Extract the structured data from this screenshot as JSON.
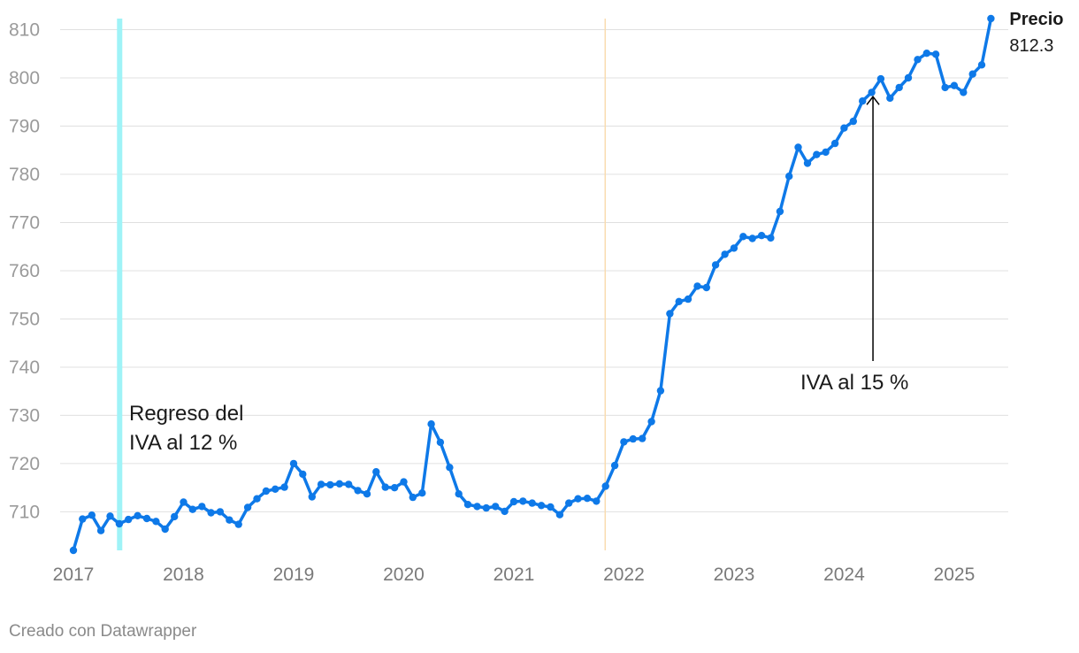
{
  "chart_data": {
    "type": "line",
    "title": "",
    "xlabel": "",
    "ylabel": "",
    "ylim": [
      702,
      812.3
    ],
    "yticks": [
      710,
      720,
      730,
      740,
      750,
      760,
      770,
      780,
      790,
      800,
      810
    ],
    "xticks": [
      2017,
      2018,
      2019,
      2020,
      2021,
      2022,
      2023,
      2024,
      2025
    ],
    "xlim": [
      2017,
      2025.33
    ],
    "grid": true,
    "colors": {
      "line": "#0e79e8",
      "band_12": "#9ff3f7",
      "line_2021": "#f9dcb0",
      "arrow": "#000000"
    },
    "series": [
      {
        "name": "Precio",
        "last_value_label": "812.3",
        "x": [
          2017.0,
          2017.083,
          2017.167,
          2017.25,
          2017.333,
          2017.417,
          2017.5,
          2017.583,
          2017.667,
          2017.75,
          2017.833,
          2017.917,
          2018.0,
          2018.083,
          2018.167,
          2018.25,
          2018.333,
          2018.417,
          2018.5,
          2018.583,
          2018.667,
          2018.75,
          2018.833,
          2018.917,
          2019.0,
          2019.083,
          2019.167,
          2019.25,
          2019.333,
          2019.417,
          2019.5,
          2019.583,
          2019.667,
          2019.75,
          2019.833,
          2019.917,
          2020.0,
          2020.083,
          2020.167,
          2020.25,
          2020.333,
          2020.417,
          2020.5,
          2020.583,
          2020.667,
          2020.75,
          2020.833,
          2020.917,
          2021.0,
          2021.083,
          2021.167,
          2021.25,
          2021.333,
          2021.417,
          2021.5,
          2021.583,
          2021.667,
          2021.75,
          2021.833,
          2021.917,
          2022.0,
          2022.083,
          2022.167,
          2022.25,
          2022.333,
          2022.417,
          2022.5,
          2022.583,
          2022.667,
          2022.75,
          2022.833,
          2022.917,
          2023.0,
          2023.083,
          2023.167,
          2023.25,
          2023.333,
          2023.417,
          2023.5,
          2023.583,
          2023.667,
          2023.75,
          2023.833,
          2023.917,
          2024.0,
          2024.083,
          2024.167,
          2024.25,
          2024.333,
          2024.417,
          2024.5,
          2024.583,
          2024.667,
          2024.75,
          2024.833,
          2024.917,
          2025.0,
          2025.083,
          2025.167,
          2025.25,
          2025.333
        ],
        "values": [
          702.0,
          708.5,
          709.3,
          706.1,
          709.1,
          707.5,
          708.4,
          709.2,
          708.6,
          708.0,
          706.4,
          709.0,
          712.0,
          710.5,
          711.1,
          709.8,
          710.0,
          708.3,
          707.4,
          710.9,
          712.7,
          714.3,
          714.7,
          715.1,
          720.0,
          717.8,
          713.1,
          715.7,
          715.6,
          715.8,
          715.7,
          714.4,
          713.7,
          718.3,
          715.1,
          715.0,
          716.2,
          713.0,
          713.9,
          728.2,
          724.4,
          719.2,
          713.7,
          711.5,
          711.1,
          710.8,
          711.1,
          710.1,
          712.1,
          712.2,
          711.8,
          711.3,
          711.0,
          709.4,
          711.8,
          712.7,
          712.8,
          712.2,
          715.3,
          719.6,
          724.5,
          725.1,
          725.2,
          728.7,
          735.1,
          751.1,
          753.6,
          754.1,
          756.8,
          756.5,
          761.2,
          763.4,
          764.7,
          767.1,
          766.7,
          767.3,
          766.8,
          772.3,
          779.6,
          785.6,
          782.3,
          784.1,
          784.6,
          786.4,
          789.6,
          791.0,
          795.2,
          797.0,
          799.8,
          795.8,
          798.0,
          800.0,
          803.8,
          805.1,
          804.9,
          798.0,
          798.4,
          797.0,
          800.8,
          802.7,
          812.3
        ]
      }
    ],
    "annotations": [
      {
        "id": "iva12",
        "lines": [
          "Regreso del",
          "IVA al 12 %"
        ],
        "x": 2017.42
      },
      {
        "id": "iva15",
        "text": "IVA al 15 %",
        "x": 2024.25,
        "y": 797.2
      }
    ],
    "reference_lines": [
      {
        "x": 2021.83
      }
    ]
  },
  "credit": "Creado con Datawrapper"
}
